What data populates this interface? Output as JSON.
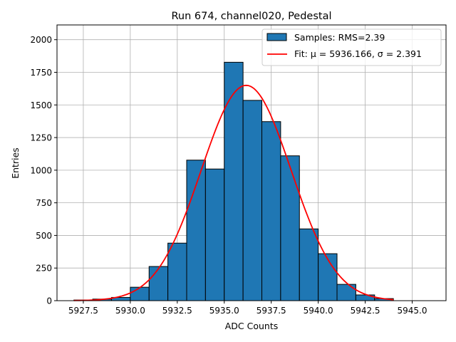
{
  "chart_data": {
    "type": "bar",
    "title": "Run 674, channel020, Pedestal",
    "xlabel": "ADC Counts",
    "ylabel": "Entries",
    "xlim": [
      5926.1,
      5946.8
    ],
    "ylim": [
      0,
      2113
    ],
    "grid": true,
    "legend_position": "top-right",
    "xticks": [
      5927.5,
      5930.0,
      5932.5,
      5935.0,
      5937.5,
      5940.0,
      5942.5,
      5945.0
    ],
    "xtick_labels": [
      "5927.5",
      "5930.0",
      "5932.5",
      "5935.0",
      "5937.5",
      "5940.0",
      "5942.5",
      "5945.0"
    ],
    "yticks": [
      0,
      250,
      500,
      750,
      1000,
      1250,
      1500,
      1750,
      2000
    ],
    "ytick_labels": [
      "0",
      "250",
      "500",
      "750",
      "1000",
      "1250",
      "1500",
      "1750",
      "2000"
    ],
    "bin_edges": [
      5927,
      5928,
      5929,
      5930,
      5931,
      5932,
      5933,
      5934,
      5935,
      5936,
      5937,
      5938,
      5939,
      5940,
      5941,
      5942,
      5943,
      5944
    ],
    "values": [
      5,
      12,
      25,
      103,
      262,
      441,
      1077,
      1009,
      1827,
      1535,
      1372,
      1110,
      550,
      360,
      125,
      44,
      16
    ],
    "bar_color": "#1f77b4",
    "fit": {
      "mu": 5936.166,
      "sigma": 2.391,
      "amplitude": 1650,
      "color": "#ff0000"
    },
    "legend": [
      {
        "label": "Samples: RMS=2.39",
        "kind": "patch"
      },
      {
        "label": "Fit: μ = 5936.166, σ = 2.391",
        "kind": "line"
      }
    ]
  }
}
